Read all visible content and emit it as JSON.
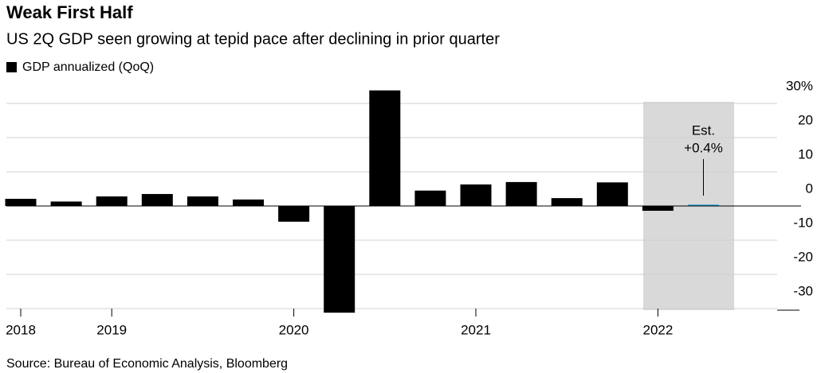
{
  "chart_data": {
    "type": "bar",
    "title": "Weak First Half",
    "subtitle": "US 2Q GDP seen growing at tepid pace after declining in prior quarter",
    "source": "Source: Bureau of Economic Analysis, Bloomberg",
    "annotation": [
      "Est.",
      "+0.4%"
    ],
    "categories": [
      "2018",
      null,
      "2019",
      null,
      null,
      null,
      "2020",
      null,
      null,
      null,
      "2021",
      null,
      null,
      null,
      "2022",
      null
    ],
    "series": [
      {
        "name": "GDP annualized (QoQ)",
        "color": "#000000",
        "values": [
          2.1,
          1.3,
          2.8,
          3.5,
          2.8,
          1.9,
          -4.6,
          -31.2,
          33.8,
          4.5,
          6.3,
          7.0,
          2.3,
          6.9,
          -1.4,
          0.4
        ]
      }
    ],
    "bar_colors": [
      "#000000",
      "#000000",
      "#000000",
      "#000000",
      "#000000",
      "#000000",
      "#000000",
      "#000000",
      "#000000",
      "#000000",
      "#000000",
      "#000000",
      "#000000",
      "#000000",
      "#000000",
      "#2a9fdc"
    ],
    "ylim": [
      -35,
      35
    ],
    "yticks": [
      -30,
      -20,
      -10,
      0,
      10,
      20,
      {
        "value": 30,
        "label": "30%"
      }
    ],
    "grid": true
  }
}
